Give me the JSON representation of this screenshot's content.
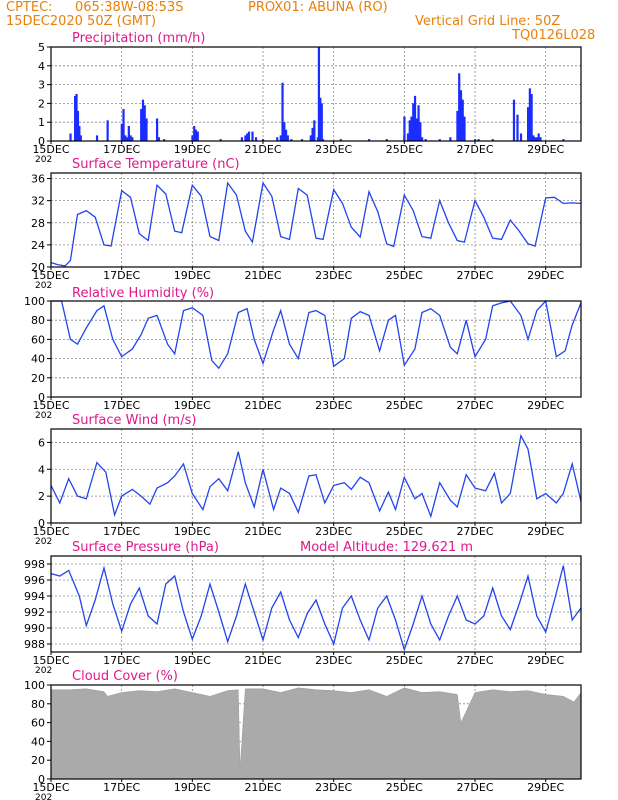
{
  "header": {
    "line1_left": "CPTEC:",
    "line1_coords": "065:38W-08:53S",
    "line1_station": "PROX01: ABUNA (RO)",
    "line2_left": "15DEC2020 50Z (GMT)",
    "grid_note": "Vertical Grid Line: 50Z",
    "model_code": "TQ0126L028"
  },
  "colors": {
    "header": "#e8800c",
    "title": "#e0188c",
    "series": "#2244ee",
    "bars": "#1a2cff",
    "cloud": "#aaaaaa",
    "grid": "#888888"
  },
  "x_axis": {
    "tick_labels": [
      "15DEC",
      "17DEC",
      "19DEC",
      "21DEC",
      "23DEC",
      "25DEC",
      "27DEC",
      "29DEC"
    ],
    "year_fragment": "202",
    "day_range": [
      0,
      15
    ]
  },
  "chart_data": [
    {
      "id": "precip",
      "type": "bar",
      "title": "Precipitation (mm/h)",
      "ylim": [
        0,
        5
      ],
      "yticks": [
        0,
        1,
        2,
        3,
        4,
        5
      ],
      "grid": true,
      "x_days": [
        0.55,
        0.68,
        0.72,
        0.76,
        0.8,
        0.84,
        1.3,
        1.6,
        2.0,
        2.05,
        2.1,
        2.15,
        2.2,
        2.25,
        2.3,
        2.55,
        2.6,
        2.65,
        2.7,
        3.0,
        3.05,
        3.2,
        4.0,
        4.05,
        4.1,
        4.15,
        4.8,
        5.4,
        5.5,
        5.55,
        5.6,
        5.7,
        5.8,
        6.0,
        6.4,
        6.5,
        6.55,
        6.6,
        6.65,
        6.7,
        6.8,
        7.1,
        7.35,
        7.4,
        7.45,
        7.55,
        7.58,
        7.62,
        7.66,
        7.7,
        8.2,
        9.0,
        9.5,
        10.0,
        10.0,
        10.1,
        10.15,
        10.2,
        10.25,
        10.3,
        10.35,
        10.4,
        10.45,
        10.5,
        10.6,
        11.0,
        11.3,
        11.5,
        11.55,
        11.6,
        11.65,
        11.7,
        12.0,
        12.1,
        12.5,
        13.1,
        13.2,
        13.3,
        13.5,
        13.55,
        13.6,
        13.65,
        13.7,
        13.75,
        13.8,
        13.85,
        14.5
      ],
      "values": [
        0.4,
        2.4,
        2.5,
        1.6,
        0.8,
        0.3,
        0.3,
        1.1,
        0.9,
        1.7,
        0.3,
        0.2,
        0.8,
        0.3,
        0.2,
        1.7,
        2.2,
        1.9,
        1.2,
        1.2,
        0.2,
        0.1,
        0.3,
        0.8,
        0.6,
        0.5,
        0.1,
        0.2,
        0.3,
        0.4,
        0.5,
        0.5,
        0.2,
        0.1,
        0.2,
        0.3,
        3.1,
        1.0,
        0.6,
        0.3,
        0.1,
        0.1,
        0.3,
        0.7,
        1.1,
        0.2,
        5.0,
        2.3,
        2.0,
        0.1,
        0.1,
        0.1,
        0.1,
        1.3,
        0.3,
        0.4,
        1.1,
        1.3,
        2.0,
        2.4,
        1.2,
        1.9,
        1.0,
        0.2,
        0.1,
        0.1,
        0.2,
        1.6,
        3.6,
        2.7,
        2.2,
        1.3,
        0.1,
        0.1,
        0.1,
        2.2,
        1.4,
        0.4,
        1.8,
        2.8,
        2.5,
        0.3,
        0.2,
        0.2,
        0.4,
        0.2,
        0.1
      ]
    },
    {
      "id": "temperature",
      "type": "line",
      "title": "Surface Temperature (nC)",
      "ylim": [
        20,
        37
      ],
      "yticks": [
        20,
        24,
        28,
        32,
        36
      ],
      "grid": true,
      "x": [
        0,
        0.2,
        0.4,
        0.55,
        0.75,
        1.0,
        1.25,
        1.5,
        1.7,
        2.0,
        2.25,
        2.5,
        2.75,
        3.0,
        3.25,
        3.5,
        3.7,
        4.0,
        4.25,
        4.5,
        4.75,
        5.0,
        5.25,
        5.5,
        5.7,
        6.0,
        6.25,
        6.5,
        6.75,
        7.0,
        7.25,
        7.5,
        7.7,
        8.0,
        8.25,
        8.5,
        8.75,
        9.0,
        9.25,
        9.5,
        9.7,
        10.0,
        10.25,
        10.5,
        10.75,
        11.0,
        11.25,
        11.5,
        11.7,
        12.0,
        12.25,
        12.5,
        12.75,
        13.0,
        13.25,
        13.5,
        13.7,
        14.0,
        14.25,
        14.5,
        14.75,
        15.0
      ],
      "values": [
        20.8,
        20.4,
        20.2,
        21.2,
        29.5,
        30.2,
        29.0,
        24.0,
        23.8,
        33.8,
        32.6,
        26.0,
        24.8,
        34.8,
        33.2,
        26.5,
        26.2,
        34.8,
        32.8,
        25.5,
        24.8,
        35.2,
        33.0,
        26.5,
        24.5,
        35.2,
        32.8,
        25.5,
        25.0,
        34.2,
        33.0,
        25.2,
        25.0,
        34.0,
        31.5,
        27.2,
        25.4,
        33.6,
        30.0,
        24.2,
        23.7,
        33.0,
        30.2,
        25.5,
        25.2,
        32.0,
        28.0,
        24.8,
        24.5,
        32.0,
        29.0,
        25.2,
        25.0,
        28.5,
        26.5,
        24.2,
        23.8,
        32.5,
        32.6,
        31.5,
        31.6,
        31.5
      ]
    },
    {
      "id": "humidity",
      "type": "line",
      "title": "Relative Humidity (%)",
      "ylim": [
        0,
        100
      ],
      "yticks": [
        0,
        20,
        40,
        60,
        80,
        100
      ],
      "grid": true,
      "x": [
        0,
        0.3,
        0.55,
        0.75,
        1.0,
        1.3,
        1.5,
        1.75,
        2.0,
        2.3,
        2.55,
        2.75,
        3.0,
        3.3,
        3.5,
        3.75,
        4.0,
        4.3,
        4.55,
        4.75,
        5.0,
        5.3,
        5.55,
        5.75,
        6.0,
        6.3,
        6.5,
        6.75,
        7.0,
        7.3,
        7.5,
        7.75,
        8.0,
        8.3,
        8.5,
        8.75,
        9.0,
        9.3,
        9.55,
        9.75,
        10.0,
        10.3,
        10.5,
        10.75,
        11.0,
        11.3,
        11.5,
        11.75,
        12.0,
        12.3,
        12.5,
        12.75,
        13.0,
        13.3,
        13.5,
        13.75,
        14.0,
        14.3,
        14.55,
        14.75,
        15.0
      ],
      "values": [
        100,
        100,
        60,
        55,
        72,
        90,
        95,
        60,
        42,
        50,
        65,
        82,
        85,
        55,
        45,
        90,
        93,
        85,
        38,
        30,
        45,
        88,
        92,
        60,
        35,
        70,
        90,
        55,
        40,
        88,
        90,
        85,
        32,
        40,
        82,
        89,
        85,
        48,
        80,
        85,
        33,
        50,
        88,
        92,
        85,
        52,
        45,
        80,
        42,
        60,
        95,
        98,
        100,
        85,
        60,
        90,
        100,
        42,
        48,
        75,
        98
      ]
    },
    {
      "id": "wind",
      "type": "line",
      "title": "Surface Wind (m/s)",
      "ylim": [
        0,
        7
      ],
      "yticks": [
        0,
        2,
        4,
        6
      ],
      "grid": true,
      "x": [
        0,
        0.25,
        0.5,
        0.75,
        1.0,
        1.3,
        1.55,
        1.8,
        2.0,
        2.3,
        2.55,
        2.8,
        3.0,
        3.3,
        3.5,
        3.75,
        4.0,
        4.3,
        4.5,
        4.75,
        5.0,
        5.3,
        5.5,
        5.75,
        6.0,
        6.3,
        6.5,
        6.75,
        7.0,
        7.3,
        7.5,
        7.75,
        8.0,
        8.3,
        8.5,
        8.75,
        9.0,
        9.3,
        9.55,
        9.75,
        10.0,
        10.3,
        10.5,
        10.75,
        11.0,
        11.3,
        11.5,
        11.75,
        12.0,
        12.3,
        12.55,
        12.75,
        13.0,
        13.3,
        13.5,
        13.75,
        14.0,
        14.3,
        14.5,
        14.75,
        15.0
      ],
      "values": [
        2.8,
        1.5,
        3.3,
        2.0,
        1.8,
        4.5,
        3.8,
        0.6,
        2.0,
        2.5,
        2.0,
        1.4,
        2.6,
        3.0,
        3.5,
        4.4,
        2.2,
        1.0,
        2.7,
        3.3,
        2.4,
        5.3,
        3.0,
        1.2,
        4.0,
        1.0,
        2.6,
        2.2,
        0.8,
        3.5,
        3.6,
        1.5,
        2.8,
        3.0,
        2.5,
        3.4,
        3.0,
        0.9,
        2.3,
        1.0,
        3.4,
        1.8,
        2.2,
        0.5,
        3.0,
        1.7,
        1.2,
        3.6,
        2.6,
        2.4,
        3.7,
        1.5,
        2.2,
        6.5,
        5.5,
        1.8,
        2.2,
        1.5,
        2.2,
        4.4,
        1.6
      ]
    },
    {
      "id": "pressure",
      "type": "line",
      "title": "Surface Pressure (hPa)",
      "note": "Model Altitude: 129.621 m",
      "ylim": [
        987,
        999
      ],
      "yticks": [
        988,
        990,
        992,
        994,
        996,
        998
      ],
      "grid": true,
      "x": [
        0,
        0.25,
        0.5,
        0.8,
        1.0,
        1.25,
        1.5,
        1.75,
        2.0,
        2.25,
        2.5,
        2.75,
        3.0,
        3.25,
        3.5,
        3.75,
        4.0,
        4.25,
        4.5,
        4.75,
        5.0,
        5.25,
        5.5,
        5.75,
        6.0,
        6.25,
        6.5,
        6.75,
        7.0,
        7.25,
        7.5,
        7.75,
        8.0,
        8.25,
        8.5,
        8.75,
        9.0,
        9.25,
        9.5,
        9.75,
        10.0,
        10.25,
        10.5,
        10.75,
        11.0,
        11.25,
        11.5,
        11.75,
        12.0,
        12.25,
        12.5,
        12.75,
        13.0,
        13.25,
        13.5,
        13.75,
        14.0,
        14.25,
        14.5,
        14.75,
        15.0
      ],
      "values": [
        996.8,
        996.5,
        997.2,
        994.0,
        990.3,
        993.5,
        997.5,
        993.0,
        989.6,
        993.0,
        995.0,
        991.5,
        990.5,
        995.5,
        996.5,
        992.0,
        988.6,
        991.5,
        995.5,
        992.0,
        988.3,
        991.5,
        995.5,
        992.0,
        988.5,
        992.5,
        994.5,
        991.0,
        988.8,
        991.8,
        993.5,
        990.5,
        988.0,
        992.5,
        994.0,
        991.0,
        988.5,
        992.5,
        994.0,
        991.0,
        987.3,
        990.5,
        994.0,
        990.5,
        988.5,
        991.5,
        994.0,
        991.0,
        990.5,
        991.5,
        995.0,
        991.5,
        989.8,
        993.0,
        996.5,
        991.5,
        989.5,
        993.5,
        997.8,
        991.0,
        992.5
      ]
    },
    {
      "id": "cloud",
      "type": "area",
      "title": "Cloud Cover (%)",
      "ylim": [
        0,
        100
      ],
      "yticks": [
        0,
        20,
        40,
        60,
        80,
        100
      ],
      "grid": true,
      "x": [
        0,
        0.5,
        1.0,
        1.5,
        1.6,
        2.0,
        2.5,
        3.0,
        3.5,
        4.0,
        4.5,
        5.0,
        5.3,
        5.35,
        5.5,
        6.0,
        6.5,
        7.0,
        7.5,
        8.0,
        8.5,
        9.0,
        9.5,
        10.0,
        10.5,
        11.0,
        11.5,
        11.6,
        12.0,
        12.5,
        13.0,
        13.5,
        14.0,
        14.5,
        14.8,
        15.0
      ],
      "values": [
        95,
        95,
        96,
        93,
        88,
        92,
        94,
        93,
        96,
        92,
        88,
        94,
        95,
        10,
        96,
        96,
        92,
        97,
        95,
        94,
        92,
        95,
        88,
        97,
        92,
        93,
        90,
        60,
        92,
        95,
        93,
        94,
        90,
        88,
        82,
        92
      ]
    }
  ]
}
